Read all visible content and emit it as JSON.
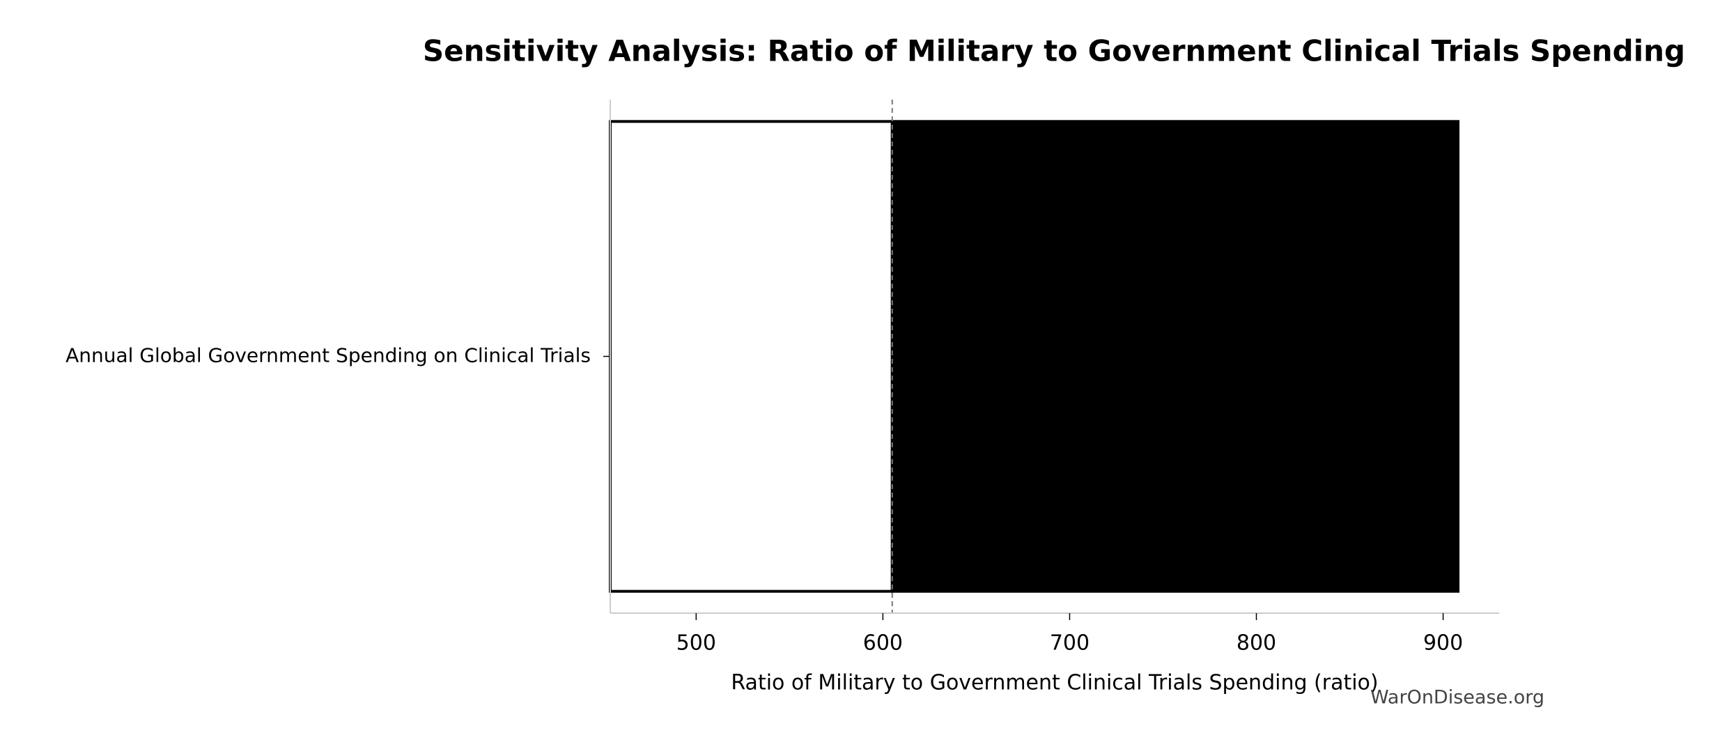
{
  "chart_data": {
    "type": "tornado",
    "title": "Sensitivity Analysis: Ratio of Military to Government Clinical Trials Spending",
    "xlabel": "Ratio of Military to Government Clinical Trials Spending (ratio)",
    "watermark": "WarOnDisease.org",
    "categories": [
      "Annual Global Government Spending on Clinical Trials"
    ],
    "baseline": 605,
    "series": [
      {
        "color": "#ffffff",
        "values": [
          454
        ]
      },
      {
        "color": "#000000",
        "values": [
          908
        ]
      }
    ],
    "xlim": [
      454,
      930
    ],
    "xticks": [
      500,
      600,
      700,
      800,
      900
    ]
  }
}
